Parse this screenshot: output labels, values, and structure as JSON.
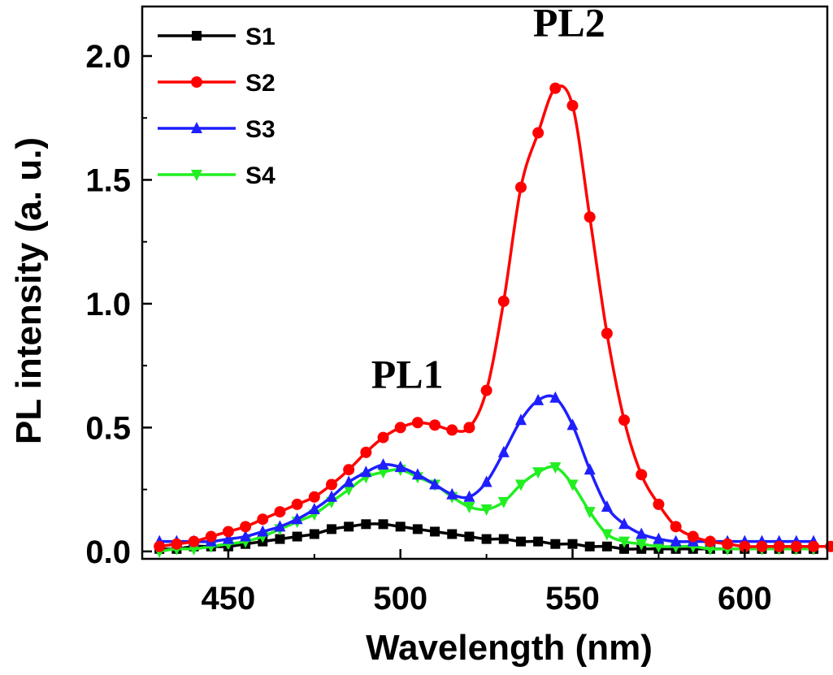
{
  "chart_data": {
    "type": "line",
    "xlabel": "Wavelength (nm)",
    "ylabel": "PL intensity (a. u.)",
    "xlim": [
      425,
      624
    ],
    "ylim": [
      -0.03,
      2.2
    ],
    "xticks": [
      450,
      500,
      550,
      600
    ],
    "xtick_labels": [
      "450",
      "500",
      "550",
      "600"
    ],
    "yticks": [
      0.0,
      0.5,
      1.0,
      1.5,
      2.0
    ],
    "ytick_labels": [
      "0.0",
      "0.5",
      "1.0",
      "1.5",
      "2.0"
    ],
    "legend_position": "top-left",
    "annotations": [
      {
        "text": "PL1",
        "x": 502,
        "y": 0.66
      },
      {
        "text": "PL2",
        "x": 549,
        "y": 2.08
      }
    ],
    "series": [
      {
        "name": "S1",
        "color": "#000000",
        "marker": "square",
        "x": [
          430,
          435,
          440,
          445,
          450,
          455,
          460,
          465,
          470,
          475,
          480,
          485,
          490,
          495,
          500,
          505,
          510,
          515,
          520,
          525,
          530,
          535,
          540,
          545,
          550,
          555,
          560,
          565,
          570,
          575,
          580,
          585,
          590,
          595,
          600,
          605,
          610,
          615,
          620
        ],
        "y": [
          0.01,
          0.01,
          0.02,
          0.02,
          0.02,
          0.03,
          0.04,
          0.05,
          0.06,
          0.07,
          0.09,
          0.1,
          0.11,
          0.11,
          0.1,
          0.09,
          0.08,
          0.07,
          0.06,
          0.05,
          0.05,
          0.04,
          0.04,
          0.03,
          0.03,
          0.02,
          0.02,
          0.01,
          0.01,
          0.01,
          0.01,
          0.01,
          0.01,
          0.01,
          0.01,
          0.01,
          0.01,
          0.01,
          0.01
        ]
      },
      {
        "name": "S2",
        "color": "#ff0000",
        "marker": "circle",
        "x": [
          430,
          435,
          440,
          445,
          450,
          455,
          460,
          465,
          470,
          475,
          480,
          485,
          490,
          495,
          500,
          505,
          510,
          515,
          520,
          525,
          530,
          535,
          540,
          545,
          550,
          555,
          560,
          565,
          570,
          575,
          580,
          585,
          590,
          595,
          600,
          605,
          610,
          615,
          620,
          625
        ],
        "y": [
          0.02,
          0.03,
          0.04,
          0.06,
          0.08,
          0.1,
          0.13,
          0.16,
          0.19,
          0.22,
          0.27,
          0.33,
          0.4,
          0.46,
          0.5,
          0.52,
          0.51,
          0.49,
          0.5,
          0.65,
          1.01,
          1.47,
          1.69,
          1.87,
          1.8,
          1.35,
          0.88,
          0.53,
          0.31,
          0.19,
          0.1,
          0.06,
          0.04,
          0.03,
          0.02,
          0.02,
          0.02,
          0.02,
          0.02,
          0.02
        ]
      },
      {
        "name": "S3",
        "color": "#1f1fff",
        "marker": "triangle-up",
        "x": [
          430,
          435,
          440,
          445,
          450,
          455,
          460,
          465,
          470,
          475,
          480,
          485,
          490,
          495,
          500,
          505,
          510,
          515,
          520,
          525,
          530,
          535,
          540,
          545,
          550,
          555,
          560,
          565,
          570,
          575,
          580,
          585,
          590,
          595,
          600,
          605,
          610,
          615,
          620
        ],
        "y": [
          0.04,
          0.04,
          0.04,
          0.04,
          0.05,
          0.06,
          0.08,
          0.1,
          0.13,
          0.17,
          0.22,
          0.28,
          0.32,
          0.35,
          0.34,
          0.31,
          0.27,
          0.23,
          0.22,
          0.28,
          0.4,
          0.53,
          0.61,
          0.62,
          0.51,
          0.33,
          0.18,
          0.11,
          0.07,
          0.05,
          0.04,
          0.04,
          0.04,
          0.04,
          0.04,
          0.04,
          0.04,
          0.04,
          0.04
        ]
      },
      {
        "name": "S4",
        "color": "#22ee22",
        "marker": "triangle-down",
        "x": [
          430,
          435,
          440,
          445,
          450,
          455,
          460,
          465,
          470,
          475,
          480,
          485,
          490,
          495,
          500,
          505,
          510,
          515,
          520,
          525,
          530,
          535,
          540,
          545,
          550,
          555,
          560,
          565,
          570,
          575,
          580,
          585,
          590,
          595,
          600,
          605,
          610,
          615,
          620
        ],
        "y": [
          0.0,
          0.01,
          0.01,
          0.02,
          0.03,
          0.04,
          0.06,
          0.09,
          0.12,
          0.15,
          0.2,
          0.25,
          0.3,
          0.32,
          0.33,
          0.3,
          0.27,
          0.22,
          0.18,
          0.17,
          0.2,
          0.27,
          0.32,
          0.34,
          0.27,
          0.16,
          0.07,
          0.04,
          0.03,
          0.02,
          0.02,
          0.02,
          0.01,
          0.01,
          0.01,
          0.01,
          0.01,
          0.01,
          0.01
        ]
      }
    ]
  }
}
